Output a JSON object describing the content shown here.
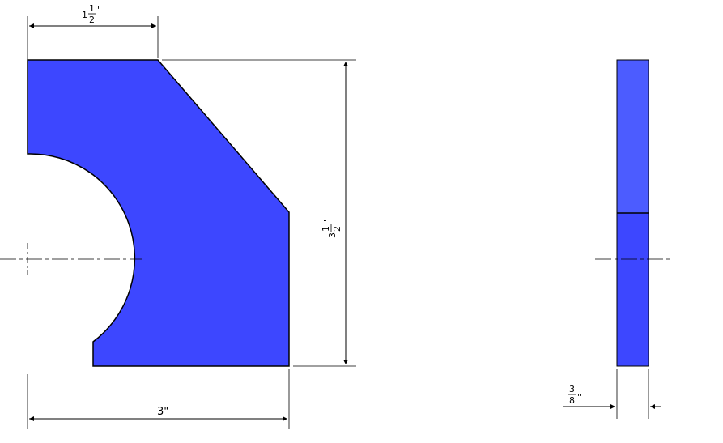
{
  "colors": {
    "part_fill": "#3d47ff",
    "side_upper_fill": "#4c5cff",
    "outline": "#000000",
    "background": "#ffffff"
  },
  "dimensions": {
    "top_width": {
      "whole": "1",
      "num": "1",
      "den": "2",
      "unit": "\""
    },
    "height": {
      "whole": "3",
      "num": "1",
      "den": "2",
      "unit": "\""
    },
    "bottom_width": {
      "label": "3\""
    },
    "thickness": {
      "num": "3",
      "den": "8",
      "unit": "\""
    }
  }
}
